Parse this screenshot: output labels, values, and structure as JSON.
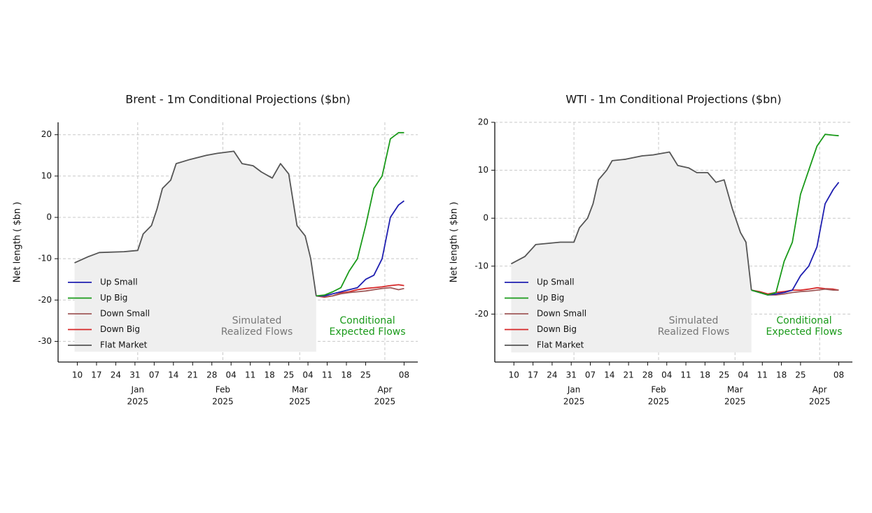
{
  "chart_data": [
    {
      "type": "line",
      "title": "Brent - 1m Conditional Projections ($bn)",
      "ylabel": "Net length ( $bn )",
      "x": [
        "2024-12-09",
        "2024-12-14",
        "2024-12-18",
        "2024-12-27",
        "2025-01-01",
        "2025-01-03",
        "2025-01-06",
        "2025-01-08",
        "2025-01-10",
        "2025-01-13",
        "2025-01-15",
        "2025-01-20",
        "2025-01-26",
        "2025-01-30",
        "2025-02-05",
        "2025-02-08",
        "2025-02-12",
        "2025-02-15",
        "2025-02-19",
        "2025-02-22",
        "2025-02-25",
        "2025-02-28",
        "2025-03-03",
        "2025-03-05",
        "2025-03-07",
        "2025-03-10",
        "2025-03-13",
        "2025-03-16",
        "2025-03-19",
        "2025-03-22",
        "2025-03-25",
        "2025-03-28",
        "2025-03-31",
        "2025-04-03",
        "2025-04-06",
        "2025-04-08"
      ],
      "series": [
        {
          "name": "Up Small",
          "color": "#1f1fb0",
          "values": [
            null,
            null,
            null,
            null,
            null,
            null,
            null,
            null,
            null,
            null,
            null,
            null,
            null,
            null,
            null,
            null,
            null,
            null,
            null,
            null,
            null,
            null,
            null,
            null,
            -19,
            -19,
            -18.5,
            -18,
            -17.5,
            -17,
            -15,
            -14,
            -10,
            0,
            3,
            4
          ]
        },
        {
          "name": "Up Big",
          "color": "#1a9a1a",
          "values": [
            null,
            null,
            null,
            null,
            null,
            null,
            null,
            null,
            null,
            null,
            null,
            null,
            null,
            null,
            null,
            null,
            null,
            null,
            null,
            null,
            null,
            null,
            null,
            null,
            -19,
            -18.8,
            -18,
            -17,
            -13,
            -10,
            -2,
            7,
            10,
            19,
            20.5,
            20.5
          ]
        },
        {
          "name": "Down Small",
          "color": "#a05a5a",
          "values": [
            null,
            null,
            null,
            null,
            null,
            null,
            null,
            null,
            null,
            null,
            null,
            null,
            null,
            null,
            null,
            null,
            null,
            null,
            null,
            null,
            null,
            null,
            null,
            null,
            -19,
            -19.2,
            -19,
            -18.5,
            -18.2,
            -18,
            -17.8,
            -17.5,
            -17.2,
            -17,
            -17.5,
            -17.2
          ]
        },
        {
          "name": "Down Big",
          "color": "#d62728",
          "values": [
            null,
            null,
            null,
            null,
            null,
            null,
            null,
            null,
            null,
            null,
            null,
            null,
            null,
            null,
            null,
            null,
            null,
            null,
            null,
            null,
            null,
            null,
            null,
            null,
            -19,
            -19.3,
            -19,
            -18.3,
            -18,
            -17.5,
            -17.2,
            -17,
            -16.8,
            -16.5,
            -16.3,
            -16.5
          ]
        },
        {
          "name": "Flat Market",
          "color": "#555555",
          "values": [
            -11,
            -9.5,
            -8.5,
            -8.3,
            -8,
            -4,
            -2,
            2,
            7,
            9,
            13,
            14,
            15,
            15.5,
            16,
            13,
            12.5,
            11,
            9.5,
            13,
            10.5,
            -2,
            -4.5,
            -10,
            -19,
            null,
            null,
            null,
            null,
            null,
            null,
            null,
            null,
            null,
            null,
            null
          ]
        }
      ],
      "shade_base": -32.5,
      "xlim": [
        "2024-12-03",
        "2025-04-13"
      ],
      "xticks": [
        {
          "value": "2024-12-10",
          "label": "10"
        },
        {
          "value": "2024-12-17",
          "label": "17"
        },
        {
          "value": "2024-12-24",
          "label": "24"
        },
        {
          "value": "2024-12-31",
          "label": "31"
        },
        {
          "value": "2025-01-07",
          "label": "07"
        },
        {
          "value": "2025-01-14",
          "label": "14"
        },
        {
          "value": "2025-01-21",
          "label": "21"
        },
        {
          "value": "2025-01-28",
          "label": "28"
        },
        {
          "value": "2025-02-04",
          "label": "04"
        },
        {
          "value": "2025-02-11",
          "label": "11"
        },
        {
          "value": "2025-02-18",
          "label": "18"
        },
        {
          "value": "2025-02-25",
          "label": "25"
        },
        {
          "value": "2025-03-04",
          "label": "04"
        },
        {
          "value": "2025-03-11",
          "label": "11"
        },
        {
          "value": "2025-03-18",
          "label": "18"
        },
        {
          "value": "2025-03-25",
          "label": "25"
        },
        {
          "value": "2025-04-08",
          "label": "08"
        }
      ],
      "month_ticks": [
        {
          "value": "2025-01-01",
          "label": "Jan",
          "year": "2025"
        },
        {
          "value": "2025-02-01",
          "label": "Feb",
          "year": "2025"
        },
        {
          "value": "2025-03-01",
          "label": "Mar",
          "year": "2025"
        },
        {
          "value": "2025-04-01",
          "label": "Apr",
          "year": "2025"
        }
      ],
      "ylim": [
        -35,
        23
      ],
      "yticks": [
        -30,
        -20,
        -10,
        0,
        10,
        20
      ],
      "grid": true,
      "legend": "lower left",
      "annotations": [
        {
          "lines": [
            "Simulated",
            "Realized Flows"
          ],
          "color": "#777777"
        },
        {
          "lines": [
            "Conditional",
            "Expected Flows"
          ],
          "color": "#1a9a1a"
        }
      ]
    },
    {
      "type": "line",
      "title": "WTI - 1m Conditional Projections ($bn)",
      "ylabel": "Net length ( $bn )",
      "x": [
        "2024-12-09",
        "2024-12-14",
        "2024-12-18",
        "2024-12-27",
        "2025-01-01",
        "2025-01-03",
        "2025-01-06",
        "2025-01-08",
        "2025-01-10",
        "2025-01-13",
        "2025-01-15",
        "2025-01-20",
        "2025-01-26",
        "2025-01-30",
        "2025-02-05",
        "2025-02-08",
        "2025-02-12",
        "2025-02-15",
        "2025-02-19",
        "2025-02-22",
        "2025-02-25",
        "2025-02-28",
        "2025-03-03",
        "2025-03-05",
        "2025-03-07",
        "2025-03-10",
        "2025-03-13",
        "2025-03-16",
        "2025-03-19",
        "2025-03-22",
        "2025-03-25",
        "2025-03-28",
        "2025-03-31",
        "2025-04-03",
        "2025-04-06",
        "2025-04-08"
      ],
      "series": [
        {
          "name": "Up Small",
          "color": "#1f1fb0",
          "values": [
            null,
            null,
            null,
            null,
            null,
            null,
            null,
            null,
            null,
            null,
            null,
            null,
            null,
            null,
            null,
            null,
            null,
            null,
            null,
            null,
            null,
            null,
            null,
            null,
            -15,
            -15.5,
            -16,
            -15.8,
            -15.5,
            -15,
            -12,
            -10,
            -6,
            3,
            6,
            7.5
          ]
        },
        {
          "name": "Up Big",
          "color": "#1a9a1a",
          "values": [
            null,
            null,
            null,
            null,
            null,
            null,
            null,
            null,
            null,
            null,
            null,
            null,
            null,
            null,
            null,
            null,
            null,
            null,
            null,
            null,
            null,
            null,
            null,
            null,
            -15,
            -15.5,
            -16,
            -15.5,
            -9,
            -5,
            5,
            10,
            15,
            17.5,
            17.3,
            17.2
          ]
        },
        {
          "name": "Down Small",
          "color": "#a05a5a",
          "values": [
            null,
            null,
            null,
            null,
            null,
            null,
            null,
            null,
            null,
            null,
            null,
            null,
            null,
            null,
            null,
            null,
            null,
            null,
            null,
            null,
            null,
            null,
            null,
            null,
            -15,
            -15.5,
            -16,
            -16,
            -15.8,
            -15.5,
            -15.3,
            -15.2,
            -15,
            -14.8,
            -15,
            -15
          ]
        },
        {
          "name": "Down Big",
          "color": "#d62728",
          "values": [
            null,
            null,
            null,
            null,
            null,
            null,
            null,
            null,
            null,
            null,
            null,
            null,
            null,
            null,
            null,
            null,
            null,
            null,
            null,
            null,
            null,
            null,
            null,
            null,
            -15,
            -15.3,
            -15.8,
            -15.5,
            -15.3,
            -15,
            -15,
            -14.8,
            -14.5,
            -14.7,
            -14.8,
            -15
          ]
        },
        {
          "name": "Flat Market",
          "color": "#555555",
          "values": [
            -9.5,
            -8,
            -5.5,
            -5,
            -5,
            -2,
            0,
            3,
            8,
            10,
            12,
            12.3,
            13,
            13.2,
            13.8,
            11,
            10.5,
            9.5,
            9.5,
            7.5,
            8,
            2,
            -3,
            -5,
            -15,
            null,
            null,
            null,
            null,
            null,
            null,
            null,
            null,
            null,
            null,
            null
          ]
        }
      ],
      "shade_base": -28,
      "xlim": [
        "2024-12-03",
        "2025-04-13"
      ],
      "xticks": [
        {
          "value": "2024-12-10",
          "label": "10"
        },
        {
          "value": "2024-12-17",
          "label": "17"
        },
        {
          "value": "2024-12-24",
          "label": "24"
        },
        {
          "value": "2024-12-31",
          "label": "31"
        },
        {
          "value": "2025-01-07",
          "label": "07"
        },
        {
          "value": "2025-01-14",
          "label": "14"
        },
        {
          "value": "2025-01-21",
          "label": "21"
        },
        {
          "value": "2025-01-28",
          "label": "28"
        },
        {
          "value": "2025-02-04",
          "label": "04"
        },
        {
          "value": "2025-02-11",
          "label": "11"
        },
        {
          "value": "2025-02-18",
          "label": "18"
        },
        {
          "value": "2025-02-25",
          "label": "25"
        },
        {
          "value": "2025-03-04",
          "label": "04"
        },
        {
          "value": "2025-03-11",
          "label": "11"
        },
        {
          "value": "2025-03-18",
          "label": "18"
        },
        {
          "value": "2025-03-25",
          "label": "25"
        },
        {
          "value": "2025-04-08",
          "label": "08"
        }
      ],
      "month_ticks": [
        {
          "value": "2025-01-01",
          "label": "Jan",
          "year": "2025"
        },
        {
          "value": "2025-02-01",
          "label": "Feb",
          "year": "2025"
        },
        {
          "value": "2025-03-01",
          "label": "Mar",
          "year": "2025"
        },
        {
          "value": "2025-04-01",
          "label": "Apr",
          "year": "2025"
        }
      ],
      "ylim": [
        -30,
        20
      ],
      "yticks": [
        -20,
        -10,
        0,
        10,
        20
      ],
      "grid": true,
      "legend": "lower left",
      "annotations": [
        {
          "lines": [
            "Simulated",
            "Realized Flows"
          ],
          "color": "#777777"
        },
        {
          "lines": [
            "Conditional",
            "Expected Flows"
          ],
          "color": "#1a9a1a"
        }
      ]
    }
  ]
}
